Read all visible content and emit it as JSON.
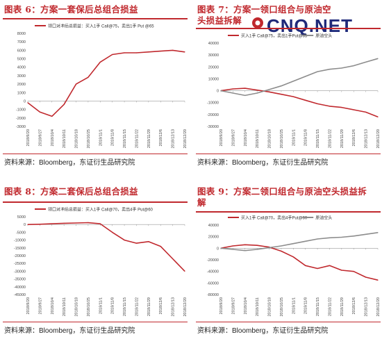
{
  "watermark": {
    "text": "CNQ.NET"
  },
  "colors": {
    "accent": "#c0282d",
    "series1": "#c0282d",
    "series2": "#8c8c8c"
  },
  "panels": [
    {
      "title": "图表 6：方案一套保后总组合损益",
      "source_prefix": "资料来源：",
      "source_en": "Bloomberg",
      "source_suffix": "，东证衍生品研究院"
    },
    {
      "title": "图表 7：方案一领口组合与原油空头损益拆解",
      "source_prefix": "资料来源：",
      "source_en": "Bloomberg",
      "source_suffix": "，东证衍生品研究院"
    },
    {
      "title": "图表 8：方案二套保后总组合损益",
      "source_prefix": "资料来源：",
      "source_en": "Bloomberg",
      "source_suffix": "，东证衍生品研究院"
    },
    {
      "title": "图表 9：方案二领口组合与原油空头损益拆解",
      "source_prefix": "资料来源：",
      "source_en": "Bloomberg",
      "source_suffix": "，东证衍生品研究院"
    }
  ],
  "chart_data": [
    {
      "type": "line",
      "x": [
        "2018/9/20",
        "2018/9/27",
        "2018/10/4",
        "2018/10/11",
        "2018/10/18",
        "2018/10/25",
        "2018/11/1",
        "2018/11/8",
        "2018/11/15",
        "2018/11/22",
        "2018/11/29",
        "2018/12/6",
        "2018/12/13",
        "2018/12/20"
      ],
      "ylim": [
        -3000,
        8000
      ],
      "yticks": [
        -3000,
        -2000,
        -1000,
        0,
        1000,
        2000,
        3000,
        4000,
        5000,
        6000,
        7000,
        8000
      ],
      "series": [
        {
          "name": "领口对冲后总损益：买入1手 Call@75，卖出1手 Put @65",
          "values": [
            -200,
            -1300,
            -1800,
            -400,
            2000,
            2800,
            4600,
            5500,
            5700,
            5700,
            5800,
            5900,
            6000,
            5800
          ]
        }
      ]
    },
    {
      "type": "line",
      "x": [
        "2018/9/20",
        "2018/9/27",
        "2018/10/4",
        "2018/10/11",
        "2018/10/18",
        "2018/10/25",
        "2018/11/1",
        "2018/11/8",
        "2018/11/15",
        "2018/11/22",
        "2018/11/29",
        "2018/12/6",
        "2018/12/13",
        "2018/12/20"
      ],
      "ylim": [
        -30000,
        40000
      ],
      "yticks": [
        -30000,
        -20000,
        -10000,
        0,
        10000,
        20000,
        30000,
        40000
      ],
      "series": [
        {
          "name": "买入1手 Call@75，卖出1手Put@65",
          "values": [
            0,
            1500,
            2000,
            500,
            -1000,
            -3000,
            -5000,
            -8000,
            -11000,
            -13000,
            -14000,
            -16000,
            -18000,
            -22000
          ]
        },
        {
          "name": "原油空头",
          "values": [
            0,
            -2000,
            -4000,
            -2000,
            1000,
            4000,
            8000,
            12000,
            16000,
            18000,
            19000,
            21000,
            24000,
            27000
          ]
        }
      ]
    },
    {
      "type": "line",
      "x": [
        "2018/9/20",
        "2018/9/27",
        "2018/10/4",
        "2018/10/11",
        "2018/10/18",
        "2018/10/25",
        "2018/11/1",
        "2018/11/8",
        "2018/11/15",
        "2018/11/22",
        "2018/11/29",
        "2018/12/6",
        "2018/12/13",
        "2018/12/20"
      ],
      "ylim": [
        -45000,
        5000
      ],
      "yticks": [
        -45000,
        -40000,
        -35000,
        -30000,
        -25000,
        -20000,
        -15000,
        -10000,
        -5000,
        0,
        5000
      ],
      "series": [
        {
          "name": "领口对冲后总损益：买入1手 Call@70，卖出4手 Put@60",
          "values": [
            0,
            200,
            500,
            800,
            1000,
            1200,
            500,
            -5000,
            -10000,
            -12000,
            -11000,
            -14000,
            -22000,
            -30000
          ]
        }
      ]
    },
    {
      "type": "line",
      "x": [
        "2018/9/20",
        "2018/9/27",
        "2018/10/4",
        "2018/10/11",
        "2018/10/18",
        "2018/10/25",
        "2018/11/1",
        "2018/11/8",
        "2018/11/15",
        "2018/11/22",
        "2018/11/29",
        "2018/12/6",
        "2018/12/13",
        "2018/12/20"
      ],
      "ylim": [
        -80000,
        40000
      ],
      "yticks": [
        -80000,
        -60000,
        -40000,
        -20000,
        0,
        20000,
        40000
      ],
      "series": [
        {
          "name": "买入1手 Call@70，卖出4手Put@60",
          "values": [
            0,
            4000,
            6000,
            5000,
            2000,
            -5000,
            -15000,
            -30000,
            -35000,
            -30000,
            -38000,
            -40000,
            -50000,
            -55000
          ]
        },
        {
          "name": "原油空头",
          "values": [
            0,
            -2000,
            -4000,
            -2000,
            1000,
            4000,
            8000,
            12000,
            16000,
            18000,
            19000,
            21000,
            24000,
            27000
          ]
        }
      ]
    }
  ]
}
